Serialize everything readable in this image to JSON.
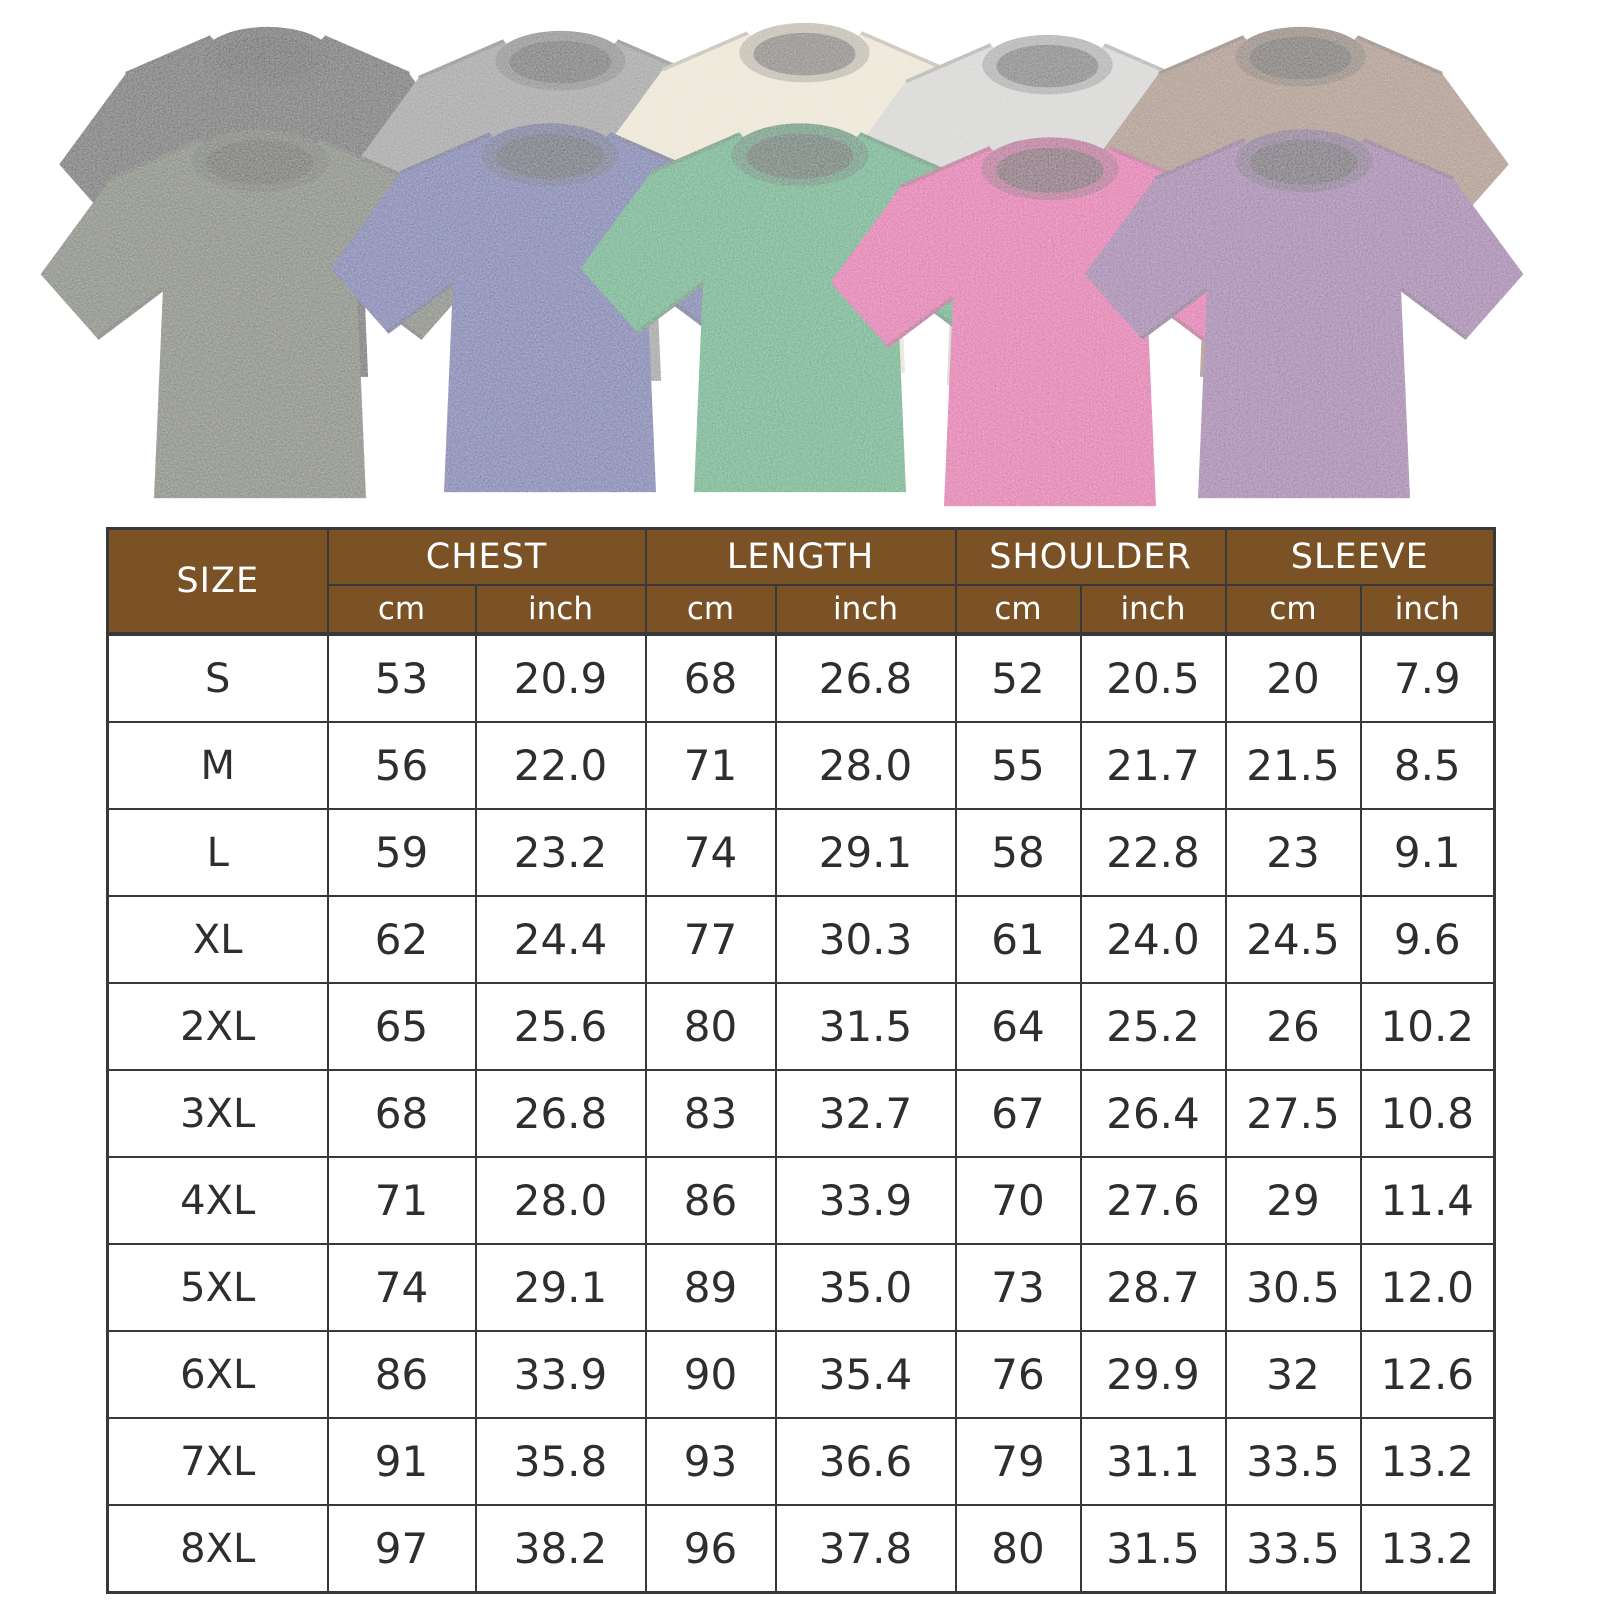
{
  "colors": {
    "header_bg": "#7A5226",
    "header_text": "#ffffff",
    "table_border": "#383838",
    "table_text": "#2e2e2e"
  },
  "shirts": [
    {
      "name": "black",
      "color": "#353437"
    },
    {
      "name": "gray",
      "color": "#8e8e90"
    },
    {
      "name": "cream",
      "color": "#e9e1cd"
    },
    {
      "name": "light-gray",
      "color": "#d0cfcd"
    },
    {
      "name": "brown",
      "color": "#9a7b66"
    },
    {
      "name": "army-green",
      "color": "#5d6550"
    },
    {
      "name": "blue",
      "color": "#4b549e"
    },
    {
      "name": "green",
      "color": "#1ba36c"
    },
    {
      "name": "rose-pink",
      "color": "#dd3f9e"
    },
    {
      "name": "purple",
      "color": "#8d5a9c"
    }
  ],
  "table": {
    "size_header": "SIZE",
    "groups": [
      {
        "label": "CHEST",
        "units": [
          "cm",
          "inch"
        ]
      },
      {
        "label": "LENGTH",
        "units": [
          "cm",
          "inch"
        ]
      },
      {
        "label": "SHOULDER",
        "units": [
          "cm",
          "inch"
        ]
      },
      {
        "label": "SLEEVE",
        "units": [
          "cm",
          "inch"
        ]
      }
    ],
    "rows": [
      {
        "size": "S",
        "values": [
          "53",
          "20.9",
          "68",
          "26.8",
          "52",
          "20.5",
          "20",
          "7.9"
        ]
      },
      {
        "size": "M",
        "values": [
          "56",
          "22.0",
          "71",
          "28.0",
          "55",
          "21.7",
          "21.5",
          "8.5"
        ]
      },
      {
        "size": "L",
        "values": [
          "59",
          "23.2",
          "74",
          "29.1",
          "58",
          "22.8",
          "23",
          "9.1"
        ]
      },
      {
        "size": "XL",
        "values": [
          "62",
          "24.4",
          "77",
          "30.3",
          "61",
          "24.0",
          "24.5",
          "9.6"
        ]
      },
      {
        "size": "2XL",
        "values": [
          "65",
          "25.6",
          "80",
          "31.5",
          "64",
          "25.2",
          "26",
          "10.2"
        ]
      },
      {
        "size": "3XL",
        "values": [
          "68",
          "26.8",
          "83",
          "32.7",
          "67",
          "26.4",
          "27.5",
          "10.8"
        ]
      },
      {
        "size": "4XL",
        "values": [
          "71",
          "28.0",
          "86",
          "33.9",
          "70",
          "27.6",
          "29",
          "11.4"
        ]
      },
      {
        "size": "5XL",
        "values": [
          "74",
          "29.1",
          "89",
          "35.0",
          "73",
          "28.7",
          "30.5",
          "12.0"
        ]
      },
      {
        "size": "6XL",
        "values": [
          "86",
          "33.9",
          "90",
          "35.4",
          "76",
          "29.9",
          "32",
          "12.6"
        ]
      },
      {
        "size": "7XL",
        "values": [
          "91",
          "35.8",
          "93",
          "36.6",
          "79",
          "31.1",
          "33.5",
          "13.2"
        ]
      },
      {
        "size": "8XL",
        "values": [
          "97",
          "38.2",
          "96",
          "37.8",
          "80",
          "31.5",
          "33.5",
          "13.2"
        ]
      }
    ]
  }
}
